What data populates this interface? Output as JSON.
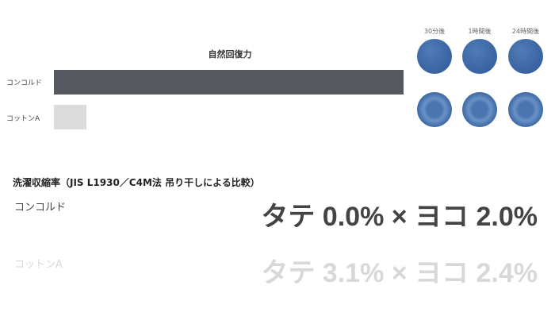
{
  "chart_data": {
    "type": "bar",
    "title": "自然回復力",
    "orientation": "horizontal",
    "categories": [
      "コンコルド",
      "コットンA"
    ],
    "values": [
      100,
      9.4
    ],
    "colors": [
      "#565a60",
      "#dcdcdc"
    ],
    "axis": "none"
  },
  "samples": {
    "captions": [
      "30分後",
      "1時間後",
      "24時間後"
    ],
    "color": "#3d68a5"
  },
  "shrinkage": {
    "title": "洗濯収縮率（JIS L1930／C4M法 吊り干しによる比較）",
    "rows": [
      {
        "label": "コンコルド",
        "value": "タテ 0.0% × ヨコ 2.0%",
        "color": "#444444"
      },
      {
        "label": "コットンA",
        "value": "タテ 3.1% × ヨコ 2.4%",
        "color": "#d8d8d8"
      }
    ]
  }
}
